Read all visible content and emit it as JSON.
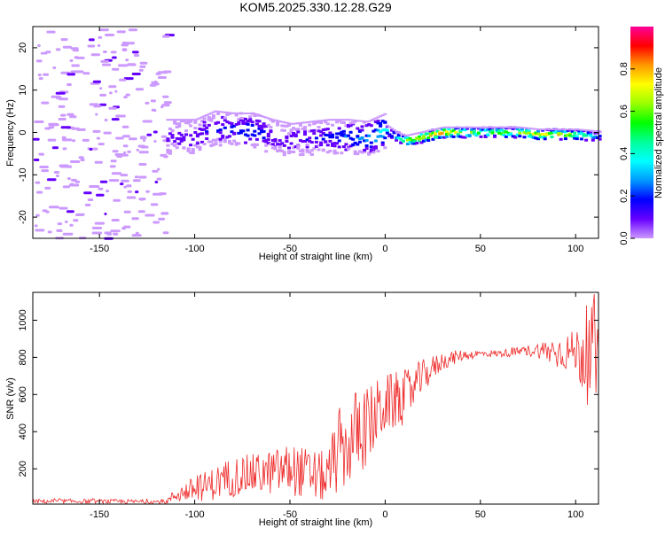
{
  "title": "KOM5.2025.330.12.28.G29",
  "chart_data": [
    {
      "type": "heatmap",
      "name": "spectrogram",
      "xlabel": "Height of straight line (km)",
      "ylabel": "Frequency (Hz)",
      "xlim": [
        -185,
        112
      ],
      "ylim": [
        -25,
        25
      ],
      "x_ticks": [
        -150,
        -100,
        -50,
        0,
        50,
        100
      ],
      "y_ticks": [
        -20,
        -10,
        0,
        10,
        20
      ],
      "colorbar": {
        "label": "Normalized spectral amplitude",
        "range": [
          0,
          1
        ],
        "ticks": [
          "0.0",
          "0.2",
          "0.4",
          "0.6",
          "0.8"
        ],
        "colors": [
          "#ffffff",
          "#cc99ff",
          "#6600ff",
          "#0000ff",
          "#0099ff",
          "#00ffff",
          "#00ff99",
          "#00ff00",
          "#99ff00",
          "#ffff00",
          "#ff9900",
          "#ff0000",
          "#ff0099"
        ]
      },
      "ridge": {
        "x": [
          -115,
          -100,
          -90,
          -80,
          -70,
          -60,
          -50,
          -40,
          -30,
          -20,
          -10,
          0,
          5,
          10,
          20,
          30,
          40,
          50,
          60,
          70,
          80,
          90,
          100,
          112
        ],
        "freq": [
          -1,
          -1,
          1,
          0.5,
          0.5,
          -1,
          -2,
          -1.5,
          -1,
          -1,
          -1.5,
          0.5,
          -1,
          -2,
          -1,
          0,
          0,
          0,
          0,
          0,
          -0.5,
          -0.5,
          -0.5,
          -1
        ],
        "amplitude": [
          0.15,
          0.2,
          0.25,
          0.25,
          0.3,
          0.2,
          0.2,
          0.2,
          0.25,
          0.3,
          0.35,
          0.45,
          0.4,
          0.7,
          0.8,
          0.9,
          0.7,
          0.6,
          0.65,
          0.7,
          0.75,
          0.8,
          0.65,
          0.3
        ]
      }
    },
    {
      "type": "line",
      "name": "snr",
      "xlabel": "Height of straight line (km)",
      "ylabel": "SNR (v/v)",
      "xlim": [
        -185,
        112
      ],
      "ylim": [
        10,
        1150
      ],
      "x_ticks": [
        -150,
        -100,
        -50,
        0,
        50,
        100
      ],
      "y_ticks": [
        200,
        400,
        600,
        800,
        1000
      ],
      "color": "#ff2222",
      "envelope_x": [
        -185,
        -150,
        -115,
        -110,
        -100,
        -90,
        -80,
        -70,
        -60,
        -50,
        -40,
        -30,
        -25,
        -20,
        -15,
        -10,
        -5,
        0,
        10,
        20,
        30,
        40,
        50,
        60,
        70,
        80,
        90,
        95,
        100,
        105,
        110,
        112
      ],
      "envelope_mean": [
        25,
        25,
        22,
        60,
        90,
        120,
        160,
        170,
        180,
        200,
        170,
        150,
        300,
        300,
        400,
        420,
        480,
        550,
        580,
        700,
        780,
        810,
        820,
        820,
        830,
        840,
        830,
        830,
        830,
        820,
        800,
        800
      ],
      "envelope_spread": [
        12,
        12,
        12,
        40,
        70,
        90,
        110,
        110,
        120,
        140,
        140,
        140,
        240,
        200,
        250,
        220,
        200,
        160,
        150,
        90,
        50,
        30,
        20,
        20,
        25,
        40,
        90,
        100,
        120,
        250,
        350,
        100
      ]
    }
  ]
}
